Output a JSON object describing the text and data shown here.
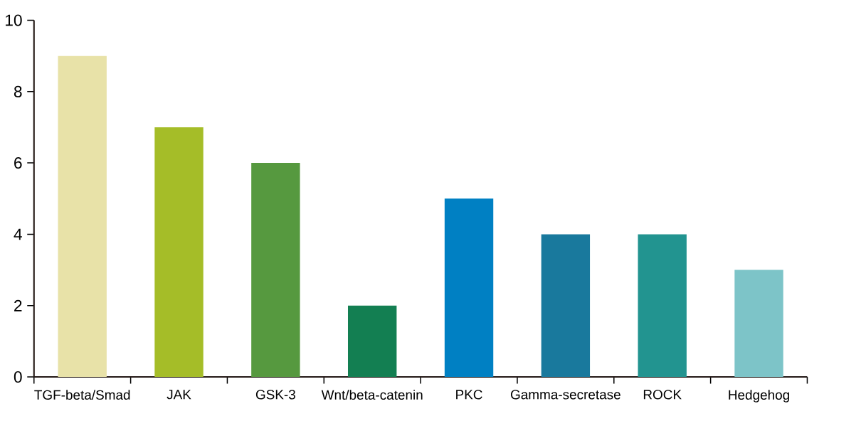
{
  "chart_data": {
    "type": "bar",
    "categories": [
      "TGF-beta/Smad",
      "JAK",
      "GSK-3",
      "Wnt/beta-catenin",
      "PKC",
      "Gamma-secretase",
      "ROCK",
      "Hedgehog"
    ],
    "values": [
      9,
      7,
      6,
      2,
      5,
      4,
      4,
      3
    ],
    "colors": [
      "#e8e2a8",
      "#a5bd28",
      "#56993f",
      "#137f52",
      "#0080c3",
      "#19799d",
      "#229490",
      "#7dc4c8"
    ],
    "ylim": [
      0,
      10
    ],
    "yticks": [
      0,
      2,
      4,
      6,
      8,
      10
    ],
    "grid": false
  }
}
